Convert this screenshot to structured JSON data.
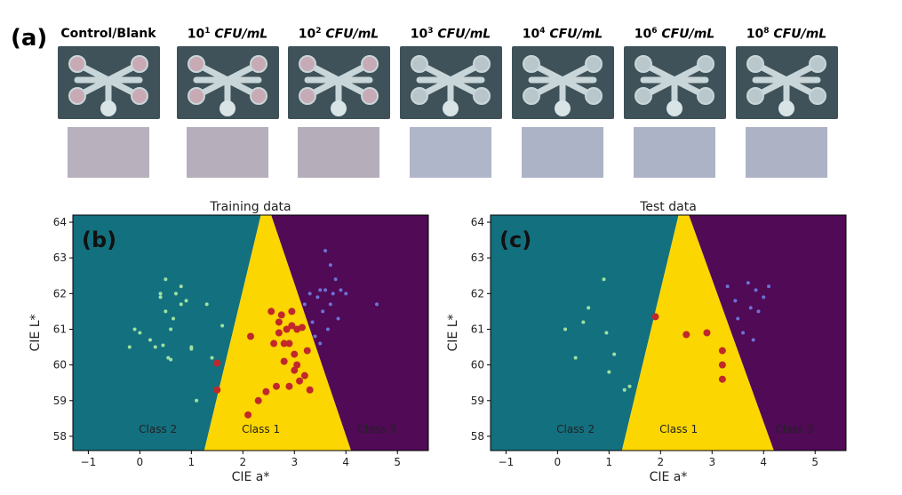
{
  "panel_a": {
    "label": "(a)",
    "columns": [
      {
        "base": "Control/Blank",
        "exp": "",
        "unit": "",
        "swatch_color": "#b9b0bd",
        "pad_color": "#c9aab4"
      },
      {
        "base": "10",
        "exp": "1",
        "unit": "CFU/mL",
        "swatch_color": "#b7aebc",
        "pad_color": "#c7aab4"
      },
      {
        "base": "10",
        "exp": "2",
        "unit": "CFU/mL",
        "swatch_color": "#b6adba",
        "pad_color": "#c6abb6"
      },
      {
        "base": "10",
        "exp": "3",
        "unit": "CFU/mL",
        "swatch_color": "#b0b6c9",
        "pad_color": "#b8c6cc"
      },
      {
        "base": "10",
        "exp": "4",
        "unit": "CFU/mL",
        "swatch_color": "#acb3c6",
        "pad_color": "#b8c7cc"
      },
      {
        "base": "10",
        "exp": "6",
        "unit": "CFU/mL",
        "swatch_color": "#acb3c6",
        "pad_color": "#b9c8cd"
      },
      {
        "base": "10",
        "exp": "8",
        "unit": "CFU/mL",
        "swatch_color": "#adb3c5",
        "pad_color": "#b9c8cd"
      }
    ]
  },
  "chart_data": [
    {
      "type": "scatter",
      "panel_label": "(b)",
      "title": "Training data",
      "xlabel": "CIE a*",
      "ylabel": "CIE L*",
      "xlim": [
        -1.3,
        5.6
      ],
      "ylim": [
        57.6,
        64.2
      ],
      "xticks": [
        -1,
        0,
        1,
        2,
        3,
        4,
        5
      ],
      "yticks": [
        58,
        59,
        60,
        61,
        62,
        63,
        64
      ],
      "regions": [
        {
          "label": "Class 2",
          "color": "#13707f",
          "label_pos": [
            0.35,
            58.1
          ]
        },
        {
          "label": "Class 1",
          "color": "#fcd600",
          "label_pos": [
            2.35,
            58.1
          ]
        },
        {
          "label": "Class 3",
          "color": "#500a56",
          "label_pos": [
            4.6,
            58.1
          ]
        }
      ],
      "boundaries": {
        "left": [
          [
            2.35,
            64.2
          ],
          [
            1.25,
            57.6
          ]
        ],
        "right": [
          [
            2.55,
            64.2
          ],
          [
            4.1,
            57.6
          ]
        ]
      },
      "series": [
        {
          "class": "Class 2",
          "color": "#9fe19f",
          "x": [
            -0.2,
            -0.1,
            0.0,
            0.2,
            0.3,
            0.4,
            0.4,
            0.45,
            0.5,
            0.5,
            0.55,
            0.6,
            0.6,
            0.65,
            0.7,
            0.8,
            0.8,
            0.9,
            1.0,
            1.0,
            1.1,
            1.3,
            1.4,
            1.6
          ],
          "y": [
            60.5,
            61.0,
            60.9,
            60.7,
            60.5,
            62.0,
            61.9,
            60.55,
            61.5,
            62.4,
            60.2,
            60.15,
            61.0,
            61.3,
            62.0,
            62.2,
            61.7,
            61.8,
            60.5,
            60.45,
            59.0,
            61.7,
            60.2,
            61.1
          ]
        },
        {
          "class": "Class 1",
          "color": "#c0282c",
          "x": [
            1.5,
            1.5,
            2.1,
            2.15,
            2.3,
            2.45,
            2.55,
            2.6,
            2.65,
            2.7,
            2.7,
            2.75,
            2.8,
            2.8,
            2.85,
            2.9,
            2.9,
            2.95,
            2.95,
            3.0,
            3.0,
            3.05,
            3.05,
            3.1,
            3.15,
            3.2,
            3.25,
            3.3
          ],
          "y": [
            59.3,
            60.05,
            58.6,
            60.8,
            59.0,
            59.25,
            61.5,
            60.6,
            59.4,
            61.2,
            60.9,
            61.4,
            60.6,
            60.1,
            61.0,
            59.4,
            60.6,
            61.5,
            61.1,
            60.3,
            59.85,
            60.0,
            61.0,
            59.55,
            61.05,
            59.7,
            60.4,
            59.3
          ],
          "size": 4
        },
        {
          "class": "Class 3",
          "color": "#6d72d6",
          "x": [
            3.2,
            3.3,
            3.35,
            3.4,
            3.45,
            3.5,
            3.5,
            3.55,
            3.6,
            3.6,
            3.65,
            3.7,
            3.7,
            3.75,
            3.8,
            3.85,
            3.9,
            4.0,
            4.6
          ],
          "y": [
            61.7,
            62.0,
            61.2,
            60.8,
            61.9,
            62.1,
            60.6,
            61.5,
            63.2,
            62.1,
            61.0,
            62.8,
            61.7,
            62.0,
            62.4,
            61.3,
            62.1,
            62.0,
            61.7
          ]
        }
      ]
    },
    {
      "type": "scatter",
      "panel_label": "(c)",
      "title": "Test data",
      "xlabel": "CIE a*",
      "ylabel": "CIE L*",
      "xlim": [
        -1.3,
        5.6
      ],
      "ylim": [
        57.6,
        64.2
      ],
      "xticks": [
        -1,
        0,
        1,
        2,
        3,
        4,
        5
      ],
      "yticks": [
        58,
        59,
        60,
        61,
        62,
        63,
        64
      ],
      "regions": [
        {
          "label": "Class 2",
          "color": "#13707f",
          "label_pos": [
            0.35,
            58.1
          ]
        },
        {
          "label": "Class 1",
          "color": "#fcd600",
          "label_pos": [
            2.35,
            58.1
          ]
        },
        {
          "label": "Class 3",
          "color": "#500a56",
          "label_pos": [
            4.6,
            58.1
          ]
        }
      ],
      "boundaries": {
        "left": [
          [
            2.35,
            64.2
          ],
          [
            1.25,
            57.6
          ]
        ],
        "right": [
          [
            2.55,
            64.2
          ],
          [
            4.2,
            57.6
          ]
        ]
      },
      "series": [
        {
          "class": "Class 2",
          "color": "#9fe19f",
          "x": [
            0.15,
            0.35,
            0.5,
            0.6,
            0.9,
            0.95,
            1.0,
            1.1,
            1.3,
            1.4
          ],
          "y": [
            61.0,
            60.2,
            61.2,
            61.6,
            62.4,
            60.9,
            59.8,
            60.3,
            59.3,
            59.4
          ]
        },
        {
          "class": "Class 1",
          "color": "#c0282c",
          "x": [
            1.9,
            2.5,
            2.9,
            3.2,
            3.2,
            3.2
          ],
          "y": [
            61.35,
            60.85,
            60.9,
            60.4,
            60.0,
            59.6
          ],
          "size": 4
        },
        {
          "class": "Class 3",
          "color": "#6d72d6",
          "x": [
            3.3,
            3.45,
            3.5,
            3.6,
            3.7,
            3.75,
            3.8,
            3.85,
            3.9,
            4.0,
            4.1
          ],
          "y": [
            62.2,
            61.8,
            61.3,
            60.9,
            62.3,
            61.6,
            60.7,
            62.1,
            61.5,
            61.9,
            62.2
          ]
        }
      ]
    }
  ]
}
